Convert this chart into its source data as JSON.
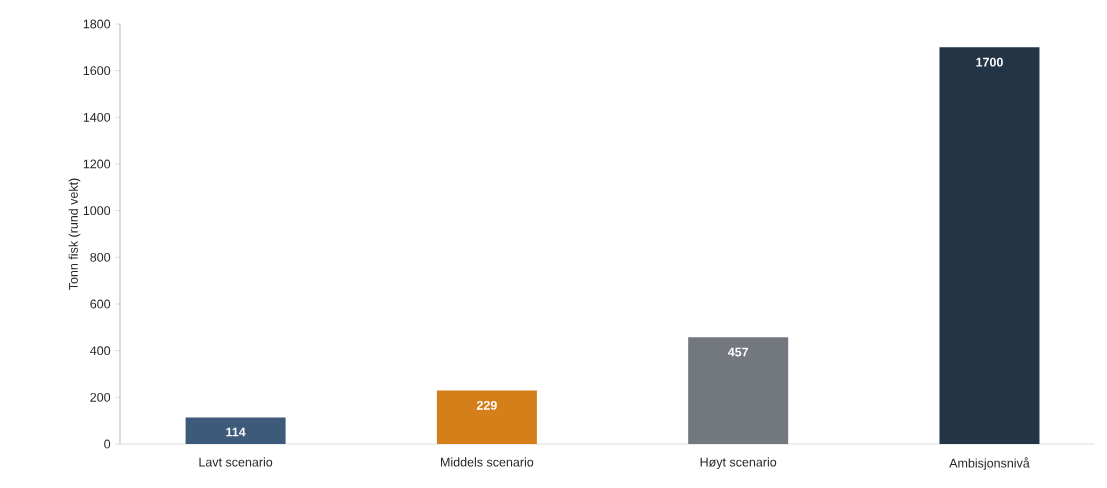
{
  "chart_data": {
    "type": "bar",
    "ylabel": "Tonn fisk (rund vekt)",
    "categories": [
      "Lavt scenario",
      "Middels scenario",
      "Høyt scenario",
      "Ambisjonsnivå"
    ],
    "values": [
      114,
      229,
      457,
      1700
    ],
    "colors": [
      "#3d5a7a",
      "#d47f1a",
      "#73777e",
      "#223446"
    ],
    "ylim": [
      0,
      1800
    ],
    "yticks": [
      0,
      200,
      400,
      600,
      800,
      1000,
      1200,
      1400,
      1600,
      1800
    ],
    "data_labels": true
  }
}
